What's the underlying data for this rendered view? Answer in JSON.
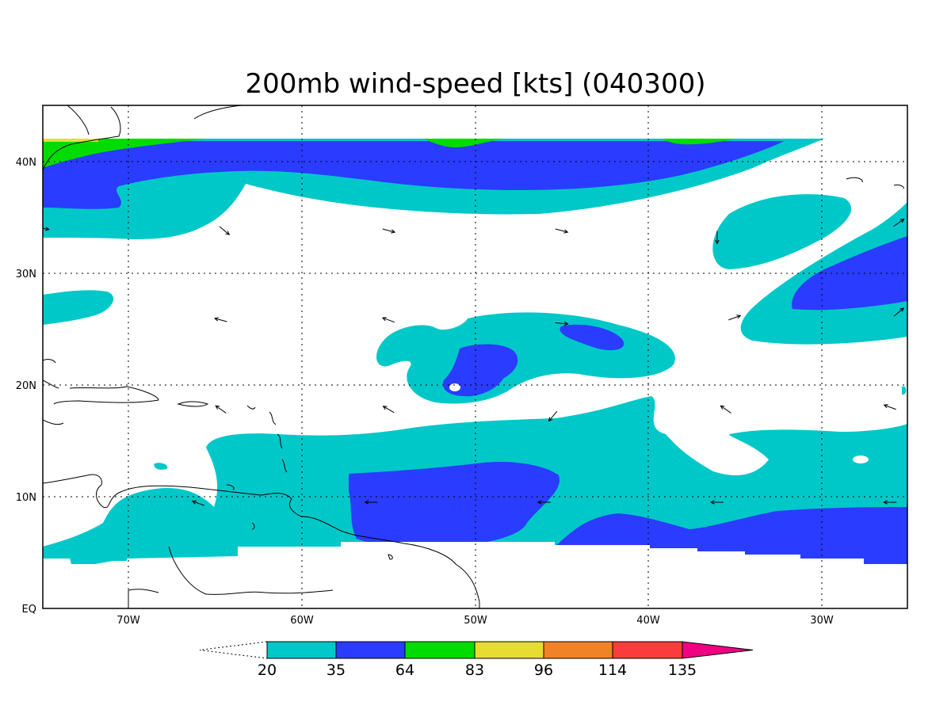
{
  "title": "200mb wind-speed [kts] (040300)",
  "map": {
    "lon_range": [
      -75,
      -25
    ],
    "lat_range": [
      0,
      45
    ],
    "lon_ticks": [
      -70,
      -60,
      -50,
      -40,
      -30
    ],
    "lat_ticks": [
      0,
      10,
      20,
      30,
      40
    ],
    "lon_tick_labels": [
      "70W",
      "60W",
      "50W",
      "40W",
      "30W"
    ],
    "lat_tick_labels": [
      "EQ",
      "10N",
      "20N",
      "30N",
      "40N"
    ],
    "grid": "dotted"
  },
  "colorbar": {
    "labels": [
      "20",
      "35",
      "64",
      "83",
      "96",
      "114",
      "135"
    ],
    "colors": [
      "#00c8c8",
      "#2a3cff",
      "#00dc00",
      "#e6dc32",
      "#f08228",
      "#fa3c3c",
      "#f00082"
    ]
  },
  "colors": {
    "c20": "#00c8c8",
    "c35": "#2a3cff",
    "c64": "#00dc00",
    "c83": "#e6dc32"
  },
  "arrows": [
    {
      "lon": -75,
      "lat": 34,
      "angle": 10
    },
    {
      "lon": -64.5,
      "lat": 33.8,
      "angle": 40
    },
    {
      "lon": -55,
      "lat": 33.8,
      "angle": 15
    },
    {
      "lon": -45,
      "lat": 33.8,
      "angle": 15
    },
    {
      "lon": -36,
      "lat": 33.2,
      "angle": 90
    },
    {
      "lon": -25.5,
      "lat": 34.5,
      "angle": -35
    },
    {
      "lon": -64.7,
      "lat": 25.8,
      "angle": 195
    },
    {
      "lon": -55,
      "lat": 25.8,
      "angle": 200
    },
    {
      "lon": -45,
      "lat": 25.5,
      "angle": 5
    },
    {
      "lon": -35,
      "lat": 26,
      "angle": -20
    },
    {
      "lon": -25.5,
      "lat": 26.5,
      "angle": -40
    },
    {
      "lon": -64.7,
      "lat": 17.8,
      "angle": 215
    },
    {
      "lon": -55,
      "lat": 17.8,
      "angle": 210
    },
    {
      "lon": -45.5,
      "lat": 17.2,
      "angle": 130
    },
    {
      "lon": -35.5,
      "lat": 17.8,
      "angle": 215
    },
    {
      "lon": -26,
      "lat": 18,
      "angle": 200
    },
    {
      "lon": -66,
      "lat": 9.4,
      "angle": 200
    },
    {
      "lon": -56,
      "lat": 9.5,
      "angle": 180
    },
    {
      "lon": -46,
      "lat": 9.5,
      "angle": 180
    },
    {
      "lon": -36,
      "lat": 9.5,
      "angle": 180
    },
    {
      "lon": -26,
      "lat": 9.5,
      "angle": 180
    }
  ]
}
